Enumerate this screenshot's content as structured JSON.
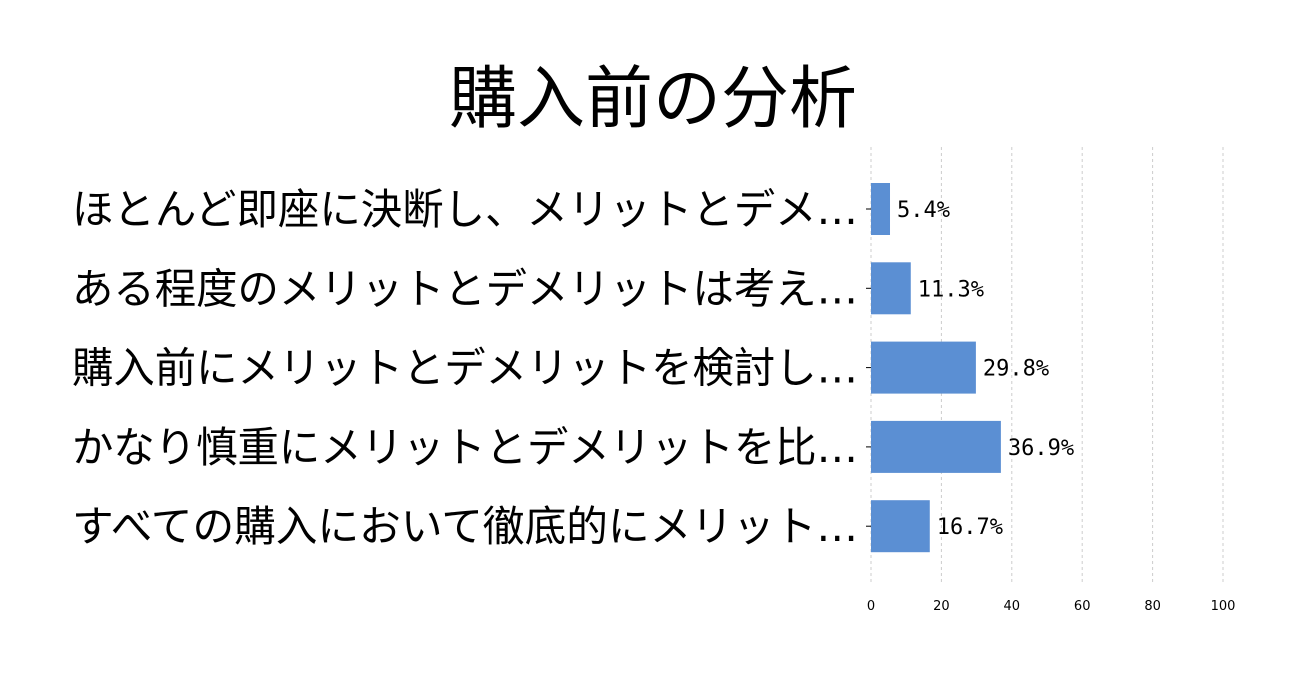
{
  "chart_data": {
    "type": "bar",
    "orientation": "horizontal",
    "title": "購入前の分析",
    "categories": [
      "ほとんど即座に決断し、メリットとデメ…",
      "ある程度のメリットとデメリットは考え…",
      "購入前にメリットとデメリットを検討し…",
      "かなり慎重にメリットとデメリットを比…",
      "すべての購入において徹底的にメリット…"
    ],
    "values": [
      5.4,
      11.3,
      29.8,
      36.9,
      16.7
    ],
    "value_labels": [
      "5.4%",
      "11.3%",
      "29.8%",
      "36.9%",
      "16.7%"
    ],
    "xlim": [
      0,
      100
    ],
    "xticks": [
      0,
      20,
      40,
      60,
      80,
      100
    ],
    "xtick_labels": [
      "0",
      "20",
      "40",
      "60",
      "80",
      "100"
    ],
    "grid": "vertical dashed",
    "bar_color": "#5b8fd3",
    "grid_color": "#cccccc"
  }
}
